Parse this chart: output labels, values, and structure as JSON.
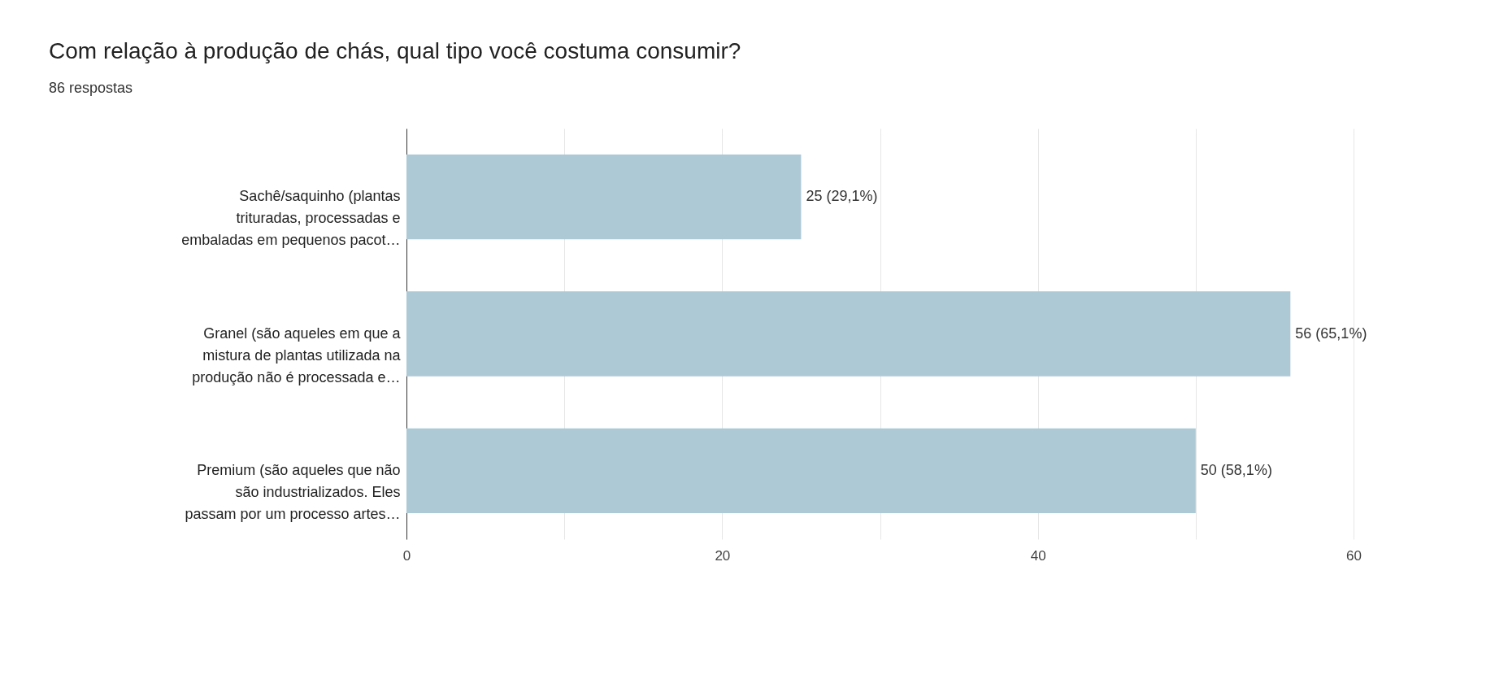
{
  "chart_data": {
    "type": "bar",
    "orientation": "horizontal",
    "title": "Com relação à produção de chás, qual tipo você costuma consumir?",
    "subtitle": "86 respostas",
    "categories": [
      "Sachê/saquinho (plantas\ntrituradas, processadas e\nembaladas em pequenos pacot…",
      "Granel (são aqueles em que a\nmistura de plantas utilizada na\nprodução não é processada e…",
      "Premium (são aqueles que não\nsão industrializados. Eles\npassam por um processo artes…"
    ],
    "values": [
      25,
      56,
      50
    ],
    "value_labels": [
      "25 (29,1%)",
      "56 (65,1%)",
      "50 (58,1%)"
    ],
    "color": "#adc9d6",
    "xlim": [
      0,
      60
    ],
    "xticks": [
      0,
      {
        "value": 10,
        "label": null
      },
      20,
      {
        "value": 30,
        "label": null
      },
      40,
      {
        "value": 50,
        "label": null
      },
      60
    ],
    "grid": "x"
  }
}
